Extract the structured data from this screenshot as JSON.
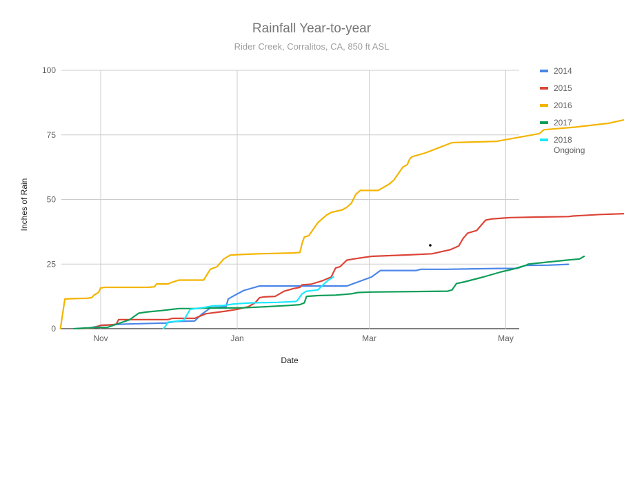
{
  "chart_data": {
    "type": "line",
    "title": "Rainfall Year-to-year",
    "subtitle": "Rider Creek, Corralitos, CA, 850 ft ASL",
    "xlabel": "Date",
    "ylabel": "Inches of Rain",
    "x_unit": "date (season Oct–May)",
    "x_ticks": [
      {
        "label": "Nov",
        "date": "Nov 1"
      },
      {
        "label": "Jan",
        "date": "Jan 1"
      },
      {
        "label": "Mar",
        "date": "Mar 1"
      },
      {
        "label": "May",
        "date": "May 1"
      }
    ],
    "x_range": [
      "Oct 14",
      "May 10"
    ],
    "y_ticks": [
      0,
      25,
      50,
      75,
      100
    ],
    "ylim": [
      0,
      100
    ],
    "grid": true,
    "legend_position": "right",
    "series": [
      {
        "name": "2014",
        "color": "#4a86e8",
        "points": [
          [
            "Oct 22",
            0
          ],
          [
            "Oct 27",
            0.3
          ],
          [
            "Oct 31",
            1
          ],
          [
            "Nov 1",
            1.3
          ],
          [
            "Nov 12",
            1.8
          ],
          [
            "Nov 30",
            2.2
          ],
          [
            "Dec 5",
            2.8
          ],
          [
            "Dec 13",
            3
          ],
          [
            "Dec 16",
            5.5
          ],
          [
            "Dec 20",
            8
          ],
          [
            "Dec 27",
            8.5
          ],
          [
            "Dec 28",
            11.5
          ],
          [
            "Dec 31",
            13
          ],
          [
            "Jan 4",
            14.8
          ],
          [
            "Jan 11",
            16.5
          ],
          [
            "Jan 18",
            16.5
          ],
          [
            "Feb 12",
            16.5
          ],
          [
            "Feb 19",
            16.5
          ],
          [
            "Mar 2",
            20
          ],
          [
            "Mar 6",
            22.5
          ],
          [
            "Mar 10",
            22.5
          ],
          [
            "Mar 22",
            22.5
          ],
          [
            "Mar 24",
            23
          ],
          [
            "Apr 4",
            23
          ],
          [
            "Apr 28",
            23.3
          ],
          [
            "May 6",
            23.3
          ],
          [
            "May 10",
            24.5
          ],
          [
            "May 20",
            24.6
          ],
          [
            "May 29",
            24.9
          ]
        ]
      },
      {
        "name": "2015",
        "color": "#db4437",
        "points": [
          [
            "Oct 22",
            0
          ],
          [
            "Oct 29",
            0.3
          ],
          [
            "Nov 1",
            1.3
          ],
          [
            "Nov 6",
            1.5
          ],
          [
            "Nov 8",
            1.8
          ],
          [
            "Nov 9",
            3.5
          ],
          [
            "Nov 13",
            3.5
          ],
          [
            "Nov 23",
            3.5
          ],
          [
            "Dec 1",
            3.5
          ],
          [
            "Dec 3",
            4
          ],
          [
            "Dec 7",
            4
          ],
          [
            "Dec 13",
            4
          ],
          [
            "Dec 18",
            5.8
          ],
          [
            "Dec 27",
            6.8
          ],
          [
            "Jan 1",
            7.5
          ],
          [
            "Jan 6",
            8.5
          ],
          [
            "Jan 9",
            10
          ],
          [
            "Jan 11",
            12
          ],
          [
            "Jan 13",
            12.3
          ],
          [
            "Jan 18",
            12.5
          ],
          [
            "Jan 22",
            14.5
          ],
          [
            "Jan 26",
            15.5
          ],
          [
            "Jan 29",
            16
          ],
          [
            "Jan 30",
            17
          ],
          [
            "Feb 3",
            17.2
          ],
          [
            "Feb 8",
            18.5
          ],
          [
            "Feb 12",
            20
          ],
          [
            "Feb 14",
            23.5
          ],
          [
            "Feb 16",
            24
          ],
          [
            "Feb 19",
            26.5
          ],
          [
            "Feb 22",
            27
          ],
          [
            "Mar 2",
            28
          ],
          [
            "Mar 17",
            28.5
          ],
          [
            "Mar 29",
            29
          ],
          [
            "Apr 6",
            30.5
          ],
          [
            "Apr 10",
            32
          ],
          [
            "Apr 12",
            35
          ],
          [
            "Apr 14",
            37
          ],
          [
            "Apr 18",
            38
          ],
          [
            "Apr 22",
            42
          ],
          [
            "Apr 25",
            42.5
          ],
          [
            "Apr 30",
            42.8
          ],
          [
            "May 3",
            43
          ],
          [
            "May 15",
            43.2
          ],
          [
            "May 29",
            43.4
          ],
          [
            "May 31",
            43.6
          ],
          [
            "Jun 4",
            43.8
          ],
          [
            "Jun 12",
            44.2
          ],
          [
            "Jun 26",
            44.6
          ]
        ]
      },
      {
        "name": "2016",
        "color": "#f4b400",
        "points": [
          [
            "Oct 14",
            0
          ],
          [
            "Oct 16",
            11.5
          ],
          [
            "Oct 19",
            11.6
          ],
          [
            "Oct 26",
            11.8
          ],
          [
            "Oct 28",
            12
          ],
          [
            "Oct 29",
            13
          ],
          [
            "Oct 30",
            13.5
          ],
          [
            "Oct 31",
            14
          ],
          [
            "Nov 1",
            15.8
          ],
          [
            "Nov 3",
            16
          ],
          [
            "Nov 10",
            16
          ],
          [
            "Nov 22",
            16
          ],
          [
            "Nov 25",
            16.2
          ],
          [
            "Nov 26",
            17.3
          ],
          [
            "Dec 1",
            17.3
          ],
          [
            "Dec 3",
            18
          ],
          [
            "Dec 6",
            18.8
          ],
          [
            "Dec 14",
            18.8
          ],
          [
            "Dec 17",
            18.8
          ],
          [
            "Dec 20",
            23
          ],
          [
            "Dec 23",
            24
          ],
          [
            "Dec 26",
            27
          ],
          [
            "Dec 29",
            28.5
          ],
          [
            "Jan 5",
            28.8
          ],
          [
            "Jan 11",
            29
          ],
          [
            "Jan 26",
            29.3
          ],
          [
            "Jan 29",
            29.5
          ],
          [
            "Jan 30",
            33
          ],
          [
            "Jan 31",
            35.5
          ],
          [
            "Feb 2",
            36
          ],
          [
            "Feb 4",
            38.5
          ],
          [
            "Feb 6",
            41
          ],
          [
            "Feb 8",
            42.5
          ],
          [
            "Feb 10",
            44
          ],
          [
            "Feb 12",
            45
          ],
          [
            "Feb 17",
            46
          ],
          [
            "Feb 19",
            47
          ],
          [
            "Feb 21",
            48.5
          ],
          [
            "Feb 23",
            52
          ],
          [
            "Feb 25",
            53.5
          ],
          [
            "Mar 1",
            53.5
          ],
          [
            "Mar 5",
            53.5
          ],
          [
            "Mar 7",
            54.5
          ],
          [
            "Mar 10",
            56
          ],
          [
            "Mar 12",
            57.5
          ],
          [
            "Mar 14",
            60
          ],
          [
            "Mar 16",
            62.5
          ],
          [
            "Mar 18",
            63.5
          ],
          [
            "Mar 19",
            65.5
          ],
          [
            "Mar 20",
            66.5
          ],
          [
            "Mar 26",
            68
          ],
          [
            "Apr 7",
            72
          ],
          [
            "Apr 27",
            72.5
          ],
          [
            "May 16",
            75.5
          ],
          [
            "May 18",
            77
          ],
          [
            "Jun 1",
            78
          ],
          [
            "Jun 16",
            79.5
          ],
          [
            "Jun 29",
            82
          ]
        ]
      },
      {
        "name": "2017",
        "color": "#0f9d58",
        "points": [
          [
            "Oct 20",
            0
          ],
          [
            "Oct 31",
            0.5
          ],
          [
            "Nov 4",
            0.5
          ],
          [
            "Nov 9",
            2
          ],
          [
            "Nov 14",
            3.5
          ],
          [
            "Nov 18",
            6
          ],
          [
            "Nov 22",
            6.5
          ],
          [
            "Nov 28",
            7
          ],
          [
            "Dec 3",
            7.5
          ],
          [
            "Dec 6",
            7.8
          ],
          [
            "Dec 14",
            7.8
          ],
          [
            "Dec 18",
            8
          ],
          [
            "Dec 27",
            8
          ],
          [
            "Jan 4",
            8.1
          ],
          [
            "Jan 14",
            8.5
          ],
          [
            "Jan 24",
            9
          ],
          [
            "Jan 29",
            9.3
          ],
          [
            "Jan 31",
            10
          ],
          [
            "Feb 1",
            12.5
          ],
          [
            "Feb 6",
            12.8
          ],
          [
            "Feb 14",
            13
          ],
          [
            "Feb 21",
            13.5
          ],
          [
            "Feb 24",
            14
          ],
          [
            "Mar 2",
            14.2
          ],
          [
            "Apr 5",
            14.5
          ],
          [
            "Apr 7",
            15
          ],
          [
            "Apr 9",
            17.5
          ],
          [
            "Apr 12",
            18
          ],
          [
            "Apr 21",
            20
          ],
          [
            "Apr 29",
            22
          ],
          [
            "May 4",
            23
          ],
          [
            "May 10",
            24.5
          ],
          [
            "May 11",
            25
          ],
          [
            "May 19",
            25.7
          ],
          [
            "May 28",
            26.5
          ],
          [
            "Jun 3",
            27
          ],
          [
            "Jun 5",
            28
          ]
        ]
      },
      {
        "name": "2018\nOngoing",
        "color": "#1ce8ff",
        "points": [
          [
            "Nov 29",
            0
          ],
          [
            "Nov 30",
            1
          ],
          [
            "Dec 1",
            2.5
          ],
          [
            "Dec 4",
            2.8
          ],
          [
            "Dec 8",
            3.2
          ],
          [
            "Dec 9",
            4.5
          ],
          [
            "Dec 10",
            6
          ],
          [
            "Dec 11",
            7.5
          ],
          [
            "Dec 17",
            8.2
          ],
          [
            "Dec 21",
            8.8
          ],
          [
            "Dec 26",
            9
          ],
          [
            "Dec 30",
            9.5
          ],
          [
            "Jan 3",
            9.8
          ],
          [
            "Jan 8",
            10
          ],
          [
            "Jan 19",
            10.2
          ],
          [
            "Jan 27",
            10.5
          ],
          [
            "Jan 28",
            11
          ],
          [
            "Jan 30",
            13.5
          ],
          [
            "Feb 1",
            14.5
          ],
          [
            "Feb 6",
            15
          ],
          [
            "Feb 9",
            17.5
          ],
          [
            "Feb 11",
            19
          ],
          [
            "Feb 13",
            20
          ]
        ]
      }
    ],
    "annotations": []
  }
}
